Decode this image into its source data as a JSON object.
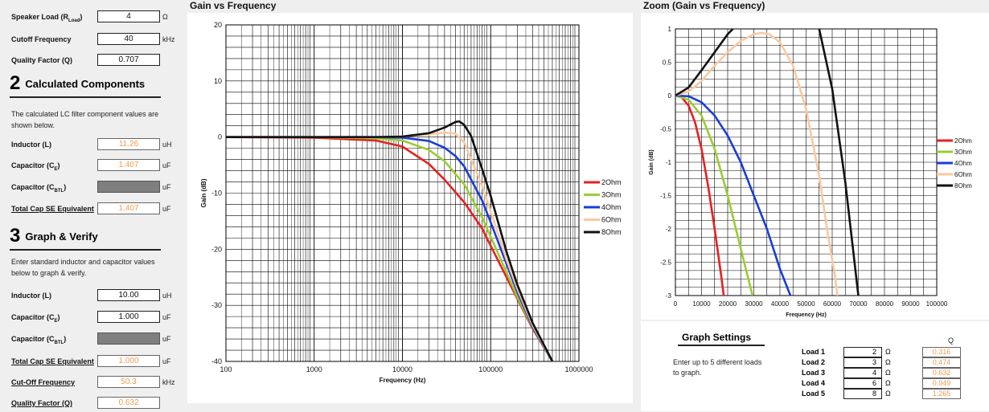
{
  "inputs": {
    "speaker_load": {
      "label": "Speaker Load (R",
      "sub": "Load",
      "label_end": ")",
      "value": "4",
      "unit": "Ω"
    },
    "cutoff_frequency": {
      "label": "Cutoff Frequency",
      "value": "40",
      "unit": "kHz"
    },
    "quality_factor": {
      "label": "Quality Factor (Q)",
      "value": "0.707",
      "unit": ""
    }
  },
  "section2": {
    "number": "2",
    "title": "Calculated Components",
    "description": "The calculated LC filter component values are shown below.",
    "inductor": {
      "label": "Inductor (L)",
      "value": "11.26",
      "unit": "uH"
    },
    "capacitor_ce": {
      "label": "Capacitor (C",
      "sub": "E",
      "label_end": ")",
      "value": "1.407",
      "unit": "uF"
    },
    "capacitor_cbtl": {
      "label": "Capacitor (C",
      "sub": "BTL",
      "label_end": ")",
      "value": "",
      "unit": "uF"
    },
    "total_cap": {
      "label": "Total Cap SE Equivalent",
      "value": "1.407",
      "unit": "uF"
    }
  },
  "section3": {
    "number": "3",
    "title": "Graph & Verify",
    "description": "Enter standard inductor and capacitor values below to graph & verify.",
    "inductor": {
      "label": "Inductor (L)",
      "value": "10.00",
      "unit": "uH"
    },
    "capacitor_ce": {
      "label": "Capacitor (C",
      "sub": "E",
      "label_end": ")",
      "value": "1.000",
      "unit": "uF"
    },
    "capacitor_cbtl": {
      "label": "Capacitor (C",
      "sub": "BTL",
      "label_end": ")",
      "value": "",
      "unit": "uF"
    },
    "total_cap": {
      "label": "Total Cap SE Equivalent",
      "value": "1.000",
      "unit": "uF"
    },
    "cutoff": {
      "label": "Cut-Off Frequency",
      "value": "50.3",
      "unit": "kHz"
    },
    "qfactor": {
      "label": "Quality Factor (Q)",
      "value": "0.632",
      "unit": ""
    }
  },
  "graph_settings": {
    "title": "Graph Settings",
    "description": "Enter up to 5 different loads to graph.",
    "q_header": "Q",
    "loads": [
      {
        "label": "Load 1",
        "value": "2",
        "unit": "Ω",
        "q": "0.316"
      },
      {
        "label": "Load 2",
        "value": "3",
        "unit": "Ω",
        "q": "0.474"
      },
      {
        "label": "Load 3",
        "value": "4",
        "unit": "Ω",
        "q": "0.632"
      },
      {
        "label": "Load 4",
        "value": "6",
        "unit": "Ω",
        "q": "0.949"
      },
      {
        "label": "Load 5",
        "value": "8",
        "unit": "Ω",
        "q": "1.265"
      }
    ]
  },
  "chart_data": [
    {
      "type": "line",
      "title": "Gain vs Frequency",
      "xlabel": "Frequency (Hz)",
      "ylabel": "Gain (dB)",
      "x_scale": "log",
      "xlim": [
        100,
        1000000
      ],
      "ylim": [
        -40,
        20
      ],
      "x_ticks": [
        "100",
        "1000",
        "10000",
        "100000",
        "1000000"
      ],
      "y_ticks": [
        "20",
        "10",
        "0",
        "-10",
        "-20",
        "-30",
        "-40"
      ],
      "grid": true,
      "legend": "right",
      "series": [
        {
          "name": "2Ohm",
          "color": "#e8201f",
          "x": [
            100,
            1000,
            5000,
            10000,
            20000,
            30000,
            50000,
            80000,
            100000,
            150000,
            200000,
            300000,
            500000
          ],
          "y": [
            0,
            -0.1,
            -0.6,
            -1.7,
            -4.8,
            -7.6,
            -11.6,
            -16.3,
            -19.4,
            -24.9,
            -28.8,
            -34.2,
            -40
          ]
        },
        {
          "name": "3Ohm",
          "color": "#9acd32",
          "x": [
            100,
            1000,
            5000,
            10000,
            20000,
            30000,
            50000,
            80000,
            100000,
            150000,
            200000,
            300000,
            500000
          ],
          "y": [
            0,
            0,
            -0.2,
            -0.6,
            -2.3,
            -4.3,
            -8.4,
            -14.3,
            -17.8,
            -24.0,
            -28.5,
            -34.0,
            -40
          ]
        },
        {
          "name": "4Ohm",
          "color": "#1a3dd6",
          "x": [
            100,
            1000,
            5000,
            10000,
            20000,
            30000,
            40000,
            50000,
            80000,
            100000,
            150000,
            200000,
            300000,
            500000
          ],
          "y": [
            0,
            0,
            0,
            -0.1,
            -0.7,
            -1.9,
            -3.4,
            -5.2,
            -11.3,
            -15.2,
            -22.5,
            -27.6,
            -33.9,
            -40
          ]
        },
        {
          "name": "6Ohm",
          "color": "#f8c9a0",
          "x": [
            100,
            1000,
            5000,
            10000,
            20000,
            30000,
            40000,
            50000,
            80000,
            100000,
            150000,
            200000,
            300000,
            500000
          ],
          "y": [
            0,
            0,
            0,
            0.1,
            0.5,
            0.8,
            0.6,
            -0.9,
            -8.7,
            -13.3,
            -21.7,
            -27.0,
            -33.6,
            -40
          ]
        },
        {
          "name": "8Ohm",
          "color": "#111111",
          "x": [
            100,
            1000,
            5000,
            10000,
            20000,
            30000,
            40000,
            44000,
            50000,
            60000,
            80000,
            100000,
            150000,
            200000,
            300000,
            500000
          ],
          "y": [
            0,
            0,
            0,
            0.1,
            0.7,
            1.7,
            2.7,
            2.8,
            2.2,
            0.2,
            -5.7,
            -10.5,
            -20.3,
            -26.3,
            -33.2,
            -40
          ]
        }
      ]
    },
    {
      "type": "line",
      "title": "Zoom (Gain vs Frequency)",
      "xlabel": "Frequency (Hz)",
      "ylabel": "Gain (dB)",
      "xlim": [
        0,
        100000
      ],
      "ylim": [
        -3,
        1
      ],
      "x_ticks": [
        "0",
        "10000",
        "20000",
        "30000",
        "40000",
        "50000",
        "60000",
        "70000",
        "80000",
        "90000",
        "100000"
      ],
      "y_ticks": [
        "1",
        "0.5",
        "0",
        "-0.5",
        "-1",
        "-1.5",
        "-2",
        "-2.5",
        "-3"
      ],
      "grid": true,
      "legend": "right",
      "series": [
        {
          "name": "2Ohm",
          "color": "#e8201f",
          "x": [
            0,
            2500,
            5000,
            7500,
            10000,
            12500,
            15000,
            17500,
            18500
          ],
          "y": [
            0,
            -0.03,
            -0.15,
            -0.4,
            -0.8,
            -1.35,
            -2.0,
            -2.7,
            -3.0
          ]
        },
        {
          "name": "3Ohm",
          "color": "#9acd32",
          "x": [
            0,
            5000,
            10000,
            15000,
            20000,
            25000,
            29500
          ],
          "y": [
            0,
            -0.06,
            -0.3,
            -0.8,
            -1.5,
            -2.3,
            -3.0
          ]
        },
        {
          "name": "4Ohm",
          "color": "#1a3dd6",
          "x": [
            0,
            5000,
            10000,
            15000,
            20000,
            25000,
            30000,
            35000,
            40000,
            44000
          ],
          "y": [
            0,
            -0.01,
            -0.1,
            -0.3,
            -0.6,
            -1.0,
            -1.5,
            -2.0,
            -2.6,
            -3.0
          ]
        },
        {
          "name": "6Ohm",
          "color": "#f8c9a0",
          "x": [
            0,
            5000,
            10000,
            15000,
            20000,
            25000,
            30000,
            33000,
            36000,
            40000,
            45000,
            50000,
            55000,
            58000,
            61000,
            62000
          ],
          "y": [
            0,
            0.06,
            0.22,
            0.45,
            0.65,
            0.82,
            0.92,
            0.94,
            0.92,
            0.8,
            0.45,
            -0.2,
            -1.2,
            -2.0,
            -2.7,
            -3.0
          ]
        },
        {
          "name": "8Ohm",
          "color": "#111111",
          "x": [
            0,
            5000,
            10000,
            15000,
            20000,
            22000
          ],
          "y": [
            0,
            0.12,
            0.38,
            0.65,
            0.92,
            1.0
          ]
        },
        {
          "name": "8Ohm",
          "color": "#111111",
          "x": [
            55000,
            60000,
            65000,
            70000
          ],
          "y": [
            1.0,
            0.1,
            -1.3,
            -3.0
          ]
        }
      ]
    }
  ]
}
